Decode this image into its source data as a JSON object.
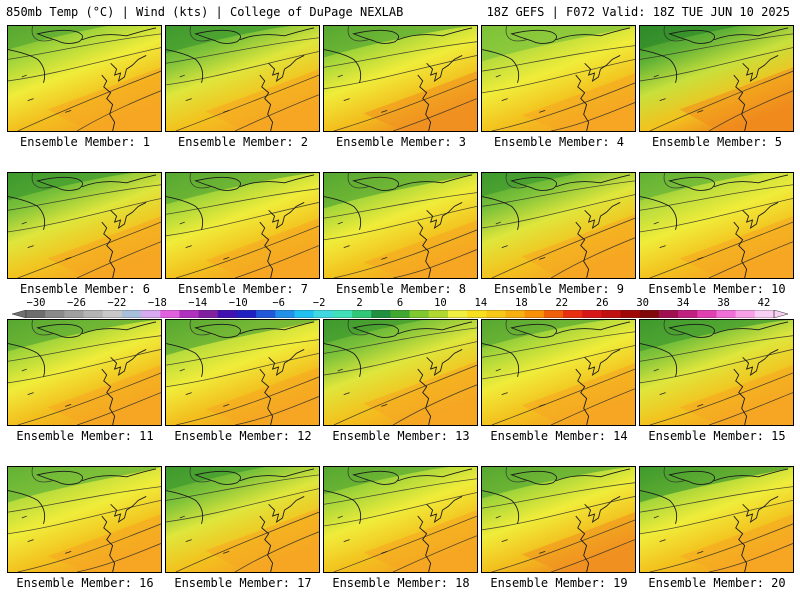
{
  "header": {
    "left": "850mb Temp (°C) | Wind (kts) | College of DuPage NEXLAB",
    "right": "18Z GEFS | F072 Valid: 18Z TUE JUN 10 2025"
  },
  "colorbar": {
    "labels": [
      "−30",
      "−26",
      "−22",
      "−18",
      "−14",
      "−10",
      "−6",
      "−2",
      "2",
      "6",
      "10",
      "14",
      "18",
      "22",
      "26",
      "30",
      "34",
      "38",
      "42"
    ],
    "colors": [
      "#6e6e6e",
      "#8a8a8a",
      "#a0a0a0",
      "#b4b4b4",
      "#c8c8c8",
      "#a8c0dc",
      "#d8a8f0",
      "#e060e0",
      "#b030c0",
      "#8020a0",
      "#4010b0",
      "#2020c0",
      "#2058d8",
      "#2090e8",
      "#20c0f0",
      "#40d8e0",
      "#40e0b8",
      "#30c878",
      "#209040",
      "#40a830",
      "#80c830",
      "#b0d830",
      "#f0f040",
      "#f8e020",
      "#f8c818",
      "#f8b010",
      "#f89008",
      "#f06008",
      "#e83010",
      "#d81818",
      "#c01010",
      "#a00808",
      "#800808",
      "#a01050",
      "#c02080",
      "#e040b0",
      "#f070d8",
      "#f8a0e8",
      "#f8d0f4"
    ],
    "left_arrow_color": "#707070",
    "right_arrow_color": "#f8d0f4"
  },
  "panels": [
    {
      "label": "Ensemble Member: 1",
      "colors": [
        "#57a832",
        "#a6d63a",
        "#f0ec3a",
        "#f3bf1e",
        "#f5a623"
      ]
    },
    {
      "label": "Ensemble Member: 2",
      "colors": [
        "#3f9a2e",
        "#7cc23a",
        "#dfe63c",
        "#f3c21e",
        "#f5a623"
      ]
    },
    {
      "label": "Ensemble Member: 3",
      "colors": [
        "#57a832",
        "#a6d63a",
        "#f0ec3a",
        "#f3bf1e",
        "#f09020"
      ]
    },
    {
      "label": "Ensemble Member: 4",
      "colors": [
        "#7cc23a",
        "#b8dc3c",
        "#f0ec3a",
        "#f3c21e",
        "#f5a623"
      ]
    },
    {
      "label": "Ensemble Member: 5",
      "colors": [
        "#2f8a2a",
        "#62b236",
        "#c8e03c",
        "#f3c21e",
        "#f08a1e"
      ]
    },
    {
      "label": "Ensemble Member: 6",
      "colors": [
        "#3f9a2e",
        "#7cc23a",
        "#dfe63c",
        "#f3c21e",
        "#f5a623"
      ]
    },
    {
      "label": "Ensemble Member: 7",
      "colors": [
        "#57a832",
        "#a6d63a",
        "#f0ec3a",
        "#f3c21e",
        "#f5a623"
      ]
    },
    {
      "label": "Ensemble Member: 8",
      "colors": [
        "#57a832",
        "#a6d63a",
        "#f0ec3a",
        "#f3c21e",
        "#f5a623"
      ]
    },
    {
      "label": "Ensemble Member: 9",
      "colors": [
        "#3f9a2e",
        "#7cc23a",
        "#dfe63c",
        "#f3c21e",
        "#f5a623"
      ]
    },
    {
      "label": "Ensemble Member: 10",
      "colors": [
        "#62b236",
        "#b8dc3c",
        "#f0ec3a",
        "#f3c21e",
        "#f5a623"
      ]
    },
    {
      "label": "Ensemble Member: 11",
      "colors": [
        "#57a832",
        "#a6d63a",
        "#f0ec3a",
        "#f3bf1e",
        "#f5a623"
      ]
    },
    {
      "label": "Ensemble Member: 12",
      "colors": [
        "#57a832",
        "#b8dc3c",
        "#f0ec3a",
        "#f3bf1e",
        "#f5a623"
      ]
    },
    {
      "label": "Ensemble Member: 13",
      "colors": [
        "#3f9a2e",
        "#7cc23a",
        "#dfe63c",
        "#f3c21e",
        "#f5a623"
      ]
    },
    {
      "label": "Ensemble Member: 14",
      "colors": [
        "#57a832",
        "#a6d63a",
        "#f0ec3a",
        "#f3c21e",
        "#f5a623"
      ]
    },
    {
      "label": "Ensemble Member: 15",
      "colors": [
        "#3f9a2e",
        "#7cc23a",
        "#dfe63c",
        "#f3c21e",
        "#f5a623"
      ]
    },
    {
      "label": "Ensemble Member: 16",
      "colors": [
        "#62b236",
        "#b8dc3c",
        "#f0ec3a",
        "#f3c21e",
        "#f5a623"
      ]
    },
    {
      "label": "Ensemble Member: 17",
      "colors": [
        "#3f9a2e",
        "#7cc23a",
        "#dfe63c",
        "#f3c21e",
        "#f5a623"
      ]
    },
    {
      "label": "Ensemble Member: 18",
      "colors": [
        "#57a832",
        "#a6d63a",
        "#f0ec3a",
        "#f3c21e",
        "#f5a623"
      ]
    },
    {
      "label": "Ensemble Member: 19",
      "colors": [
        "#57a832",
        "#a6d63a",
        "#f0ec3a",
        "#f3bf1e",
        "#f09020"
      ]
    },
    {
      "label": "Ensemble Member: 20",
      "colors": [
        "#3f9a2e",
        "#a6d63a",
        "#f0ec3a",
        "#f3c21e",
        "#f5a623"
      ]
    }
  ]
}
